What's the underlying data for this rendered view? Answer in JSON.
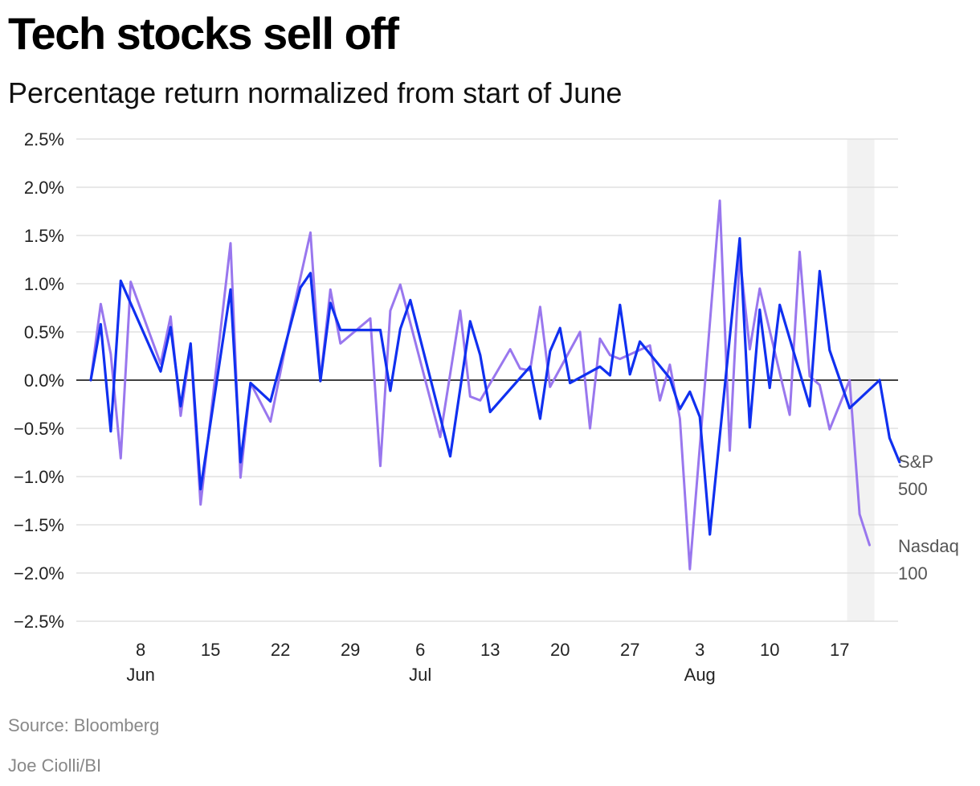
{
  "header": {
    "title": "Tech stocks sell off",
    "subtitle": "Percentage return normalized from start of June"
  },
  "footer": {
    "source": "Source: Bloomberg",
    "credit": "Joe Ciolli/BI"
  },
  "colors": {
    "sp500": "#1030f0",
    "nasdaq": "#9977ee",
    "gridline": "#e0e0e0",
    "zero_line": "#000000",
    "highlight_band": "#f2f2f2"
  },
  "chart_data": {
    "type": "line",
    "xlabel": "",
    "ylabel": "",
    "ylim": [
      -2.5,
      2.5
    ],
    "xlim": [
      "2024-06-01",
      "2024-08-21"
    ],
    "grid": true,
    "legend": "right-end labels",
    "y_ticks": [
      {
        "value": 2.5,
        "label": "2.5%"
      },
      {
        "value": 2.0,
        "label": "2.0%"
      },
      {
        "value": 1.5,
        "label": "1.5%"
      },
      {
        "value": 1.0,
        "label": "1.0%"
      },
      {
        "value": 0.5,
        "label": "0.5%"
      },
      {
        "value": 0.0,
        "label": "0.0%"
      },
      {
        "value": -0.5,
        "label": "−0.5%"
      },
      {
        "value": -1.0,
        "label": "−1.0%"
      },
      {
        "value": -1.5,
        "label": "−1.5%"
      },
      {
        "value": -2.0,
        "label": "−2.0%"
      },
      {
        "value": -2.5,
        "label": "−2.5%"
      }
    ],
    "x_ticks": [
      {
        "date": "2024-06-08",
        "label": "8",
        "month": "Jun"
      },
      {
        "date": "2024-06-15",
        "label": "15",
        "month": ""
      },
      {
        "date": "2024-06-22",
        "label": "22",
        "month": ""
      },
      {
        "date": "2024-06-29",
        "label": "29",
        "month": ""
      },
      {
        "date": "2024-07-06",
        "label": "6",
        "month": "Jul"
      },
      {
        "date": "2024-07-13",
        "label": "13",
        "month": ""
      },
      {
        "date": "2024-07-20",
        "label": "20",
        "month": ""
      },
      {
        "date": "2024-07-27",
        "label": "27",
        "month": ""
      },
      {
        "date": "2024-08-03",
        "label": "3",
        "month": "Aug"
      },
      {
        "date": "2024-08-10",
        "label": "10",
        "month": ""
      },
      {
        "date": "2024-08-17",
        "label": "17",
        "month": ""
      }
    ],
    "highlight": {
      "from": "2024-08-18",
      "to": "2024-08-20"
    },
    "series": [
      {
        "name": "Nasdaq 100",
        "label_lines": [
          "Nasdaq",
          "100"
        ],
        "points": [
          [
            "2024-06-03",
            0.0
          ],
          [
            "2024-06-04",
            0.79
          ],
          [
            "2024-06-05",
            0.27
          ],
          [
            "2024-06-06",
            -0.81
          ],
          [
            "2024-06-07",
            1.02
          ],
          [
            "2024-06-10",
            0.17
          ],
          [
            "2024-06-11",
            0.66
          ],
          [
            "2024-06-12",
            -0.37
          ],
          [
            "2024-06-13",
            0.35
          ],
          [
            "2024-06-14",
            -1.29
          ],
          [
            "2024-06-17",
            1.42
          ],
          [
            "2024-06-18",
            -1.01
          ],
          [
            "2024-06-19",
            -0.03
          ],
          [
            "2024-06-21",
            -0.43
          ],
          [
            "2024-06-23",
            0.6
          ],
          [
            "2024-06-25",
            1.53
          ],
          [
            "2024-06-26",
            0.0
          ],
          [
            "2024-06-27",
            0.94
          ],
          [
            "2024-06-28",
            0.38
          ],
          [
            "2024-07-01",
            0.64
          ],
          [
            "2024-07-02",
            -0.89
          ],
          [
            "2024-07-03",
            0.72
          ],
          [
            "2024-07-04",
            0.99
          ],
          [
            "2024-07-08",
            -0.59
          ],
          [
            "2024-07-10",
            0.72
          ],
          [
            "2024-07-11",
            -0.17
          ],
          [
            "2024-07-12",
            -0.21
          ],
          [
            "2024-07-15",
            0.32
          ],
          [
            "2024-07-16",
            0.12
          ],
          [
            "2024-07-17",
            0.1
          ],
          [
            "2024-07-18",
            0.76
          ],
          [
            "2024-07-19",
            -0.07
          ],
          [
            "2024-07-22",
            0.5
          ],
          [
            "2024-07-23",
            -0.5
          ],
          [
            "2024-07-24",
            0.43
          ],
          [
            "2024-07-25",
            0.26
          ],
          [
            "2024-07-26",
            0.22
          ],
          [
            "2024-07-29",
            0.36
          ],
          [
            "2024-07-30",
            -0.21
          ],
          [
            "2024-07-31",
            0.16
          ],
          [
            "2024-08-01",
            -0.4
          ],
          [
            "2024-08-02",
            -1.96
          ],
          [
            "2024-08-05",
            1.86
          ],
          [
            "2024-08-06",
            -0.73
          ],
          [
            "2024-08-07",
            1.29
          ],
          [
            "2024-08-08",
            0.32
          ],
          [
            "2024-08-09",
            0.95
          ],
          [
            "2024-08-12",
            -0.36
          ],
          [
            "2024-08-13",
            1.33
          ],
          [
            "2024-08-14",
            0.04
          ],
          [
            "2024-08-15",
            -0.05
          ],
          [
            "2024-08-16",
            -0.51
          ],
          [
            "2024-08-18",
            0.0
          ],
          [
            "2024-08-19",
            -1.39
          ],
          [
            "2024-08-20",
            -1.71
          ]
        ]
      },
      {
        "name": "S&P 500",
        "label_lines": [
          "S&P",
          "500"
        ],
        "points": [
          [
            "2024-06-03",
            0.0
          ],
          [
            "2024-06-04",
            0.58
          ],
          [
            "2024-06-05",
            -0.53
          ],
          [
            "2024-06-06",
            1.03
          ],
          [
            "2024-06-10",
            0.09
          ],
          [
            "2024-06-11",
            0.55
          ],
          [
            "2024-06-12",
            -0.27
          ],
          [
            "2024-06-13",
            0.38
          ],
          [
            "2024-06-14",
            -1.13
          ],
          [
            "2024-06-17",
            0.94
          ],
          [
            "2024-06-18",
            -0.85
          ],
          [
            "2024-06-19",
            -0.03
          ],
          [
            "2024-06-21",
            -0.22
          ],
          [
            "2024-06-24",
            0.96
          ],
          [
            "2024-06-25",
            1.11
          ],
          [
            "2024-06-26",
            -0.01
          ],
          [
            "2024-06-27",
            0.8
          ],
          [
            "2024-06-28",
            0.52
          ],
          [
            "2024-07-02",
            0.52
          ],
          [
            "2024-07-03",
            -0.11
          ],
          [
            "2024-07-04",
            0.53
          ],
          [
            "2024-07-05",
            0.83
          ],
          [
            "2024-07-09",
            -0.79
          ],
          [
            "2024-07-11",
            0.61
          ],
          [
            "2024-07-12",
            0.26
          ],
          [
            "2024-07-13",
            -0.33
          ],
          [
            "2024-07-17",
            0.14
          ],
          [
            "2024-07-18",
            -0.4
          ],
          [
            "2024-07-19",
            0.3
          ],
          [
            "2024-07-20",
            0.54
          ],
          [
            "2024-07-21",
            -0.03
          ],
          [
            "2024-07-24",
            0.14
          ],
          [
            "2024-07-25",
            0.05
          ],
          [
            "2024-07-26",
            0.78
          ],
          [
            "2024-07-27",
            0.06
          ],
          [
            "2024-07-28",
            0.4
          ],
          [
            "2024-07-31",
            0.02
          ],
          [
            "2024-08-01",
            -0.3
          ],
          [
            "2024-08-02",
            -0.12
          ],
          [
            "2024-08-03",
            -0.38
          ],
          [
            "2024-08-04",
            -1.6
          ],
          [
            "2024-08-07",
            1.47
          ],
          [
            "2024-08-08",
            -0.49
          ],
          [
            "2024-08-09",
            0.73
          ],
          [
            "2024-08-10",
            -0.08
          ],
          [
            "2024-08-11",
            0.78
          ],
          [
            "2024-08-14",
            -0.27
          ],
          [
            "2024-08-15",
            1.13
          ],
          [
            "2024-08-16",
            0.31
          ],
          [
            "2024-08-18",
            -0.29
          ],
          [
            "2024-08-21",
            0.0
          ],
          [
            "2024-08-22",
            -0.6
          ],
          [
            "2024-08-23",
            -0.85
          ]
        ]
      }
    ]
  }
}
